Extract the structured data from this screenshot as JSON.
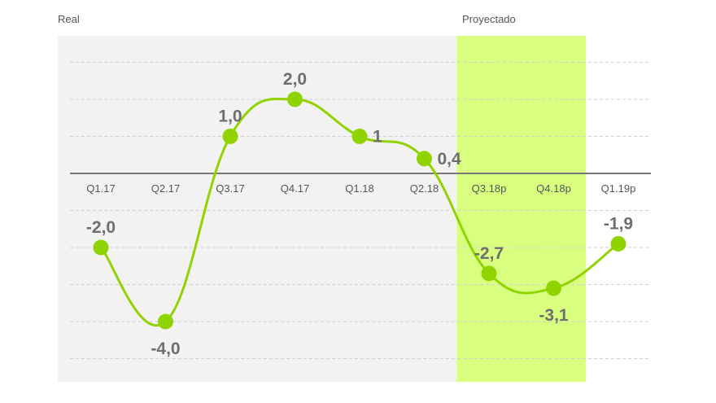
{
  "header": {
    "left_label": "Real",
    "right_label": "Proyectado"
  },
  "chart_data": {
    "type": "line",
    "title": "",
    "xlabel": "",
    "ylabel": "",
    "categories": [
      "Q1.17",
      "Q2.17",
      "Q3.17",
      "Q4.17",
      "Q1.18",
      "Q2.18",
      "Q3.18p",
      "Q4.18p",
      "Q1.19p"
    ],
    "series": [
      {
        "values": [
          -2.0,
          -4.0,
          1.0,
          2.0,
          1.0,
          0.4,
          -2.7,
          -3.1,
          -1.9
        ],
        "data_labels": [
          "-2,0",
          "-4,0",
          "1,0",
          "2,0",
          "1",
          "0,4",
          "-2,7",
          "-3,1",
          "-1,9"
        ]
      }
    ],
    "ylim": [
      -5,
      3
    ],
    "grid": true,
    "gridline_style": "dashed",
    "projected_start_index": 6,
    "highlight_range": [
      "Q3.18p",
      "Q4.18p"
    ],
    "colors": {
      "line": "#8fd400",
      "marker": "#8fd400",
      "real_background": "#f2f2f2",
      "projected_highlight": "#d8ff80",
      "zero_line": "#777777",
      "grid": "#d0d0d0",
      "tick_text": "#555555",
      "data_label": "#6e6e6e"
    }
  }
}
